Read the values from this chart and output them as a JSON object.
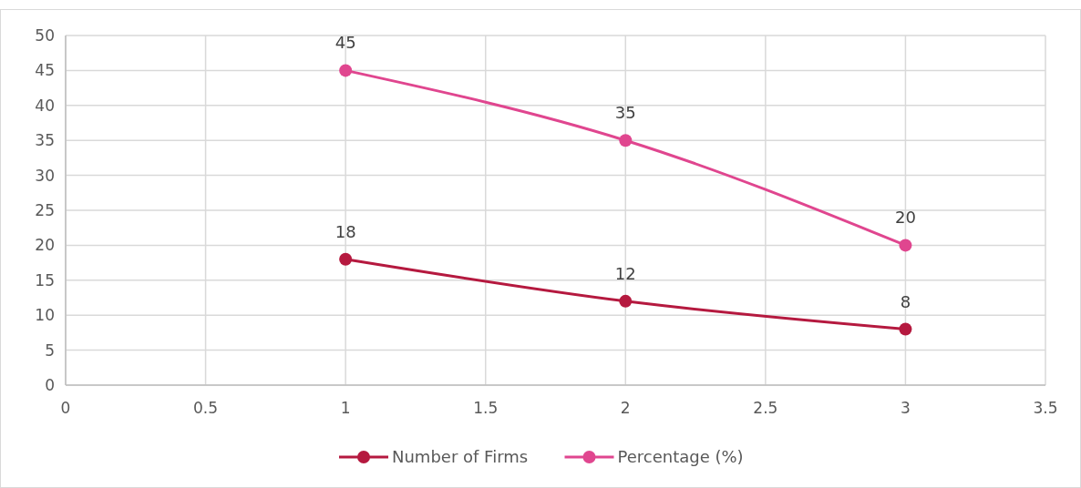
{
  "chart_data": {
    "type": "line",
    "x": [
      1,
      2,
      3
    ],
    "series": [
      {
        "name": "Number of Firms",
        "color": "#b5193f",
        "values": [
          18,
          12,
          8
        ]
      },
      {
        "name": "Percentage (%)",
        "color": "#e0468f",
        "values": [
          45,
          35,
          20
        ]
      }
    ],
    "xlim": [
      0,
      3.5
    ],
    "xticks": [
      0,
      0.5,
      {
        "value": 1,
        "label": "1"
      },
      1.5,
      2,
      2.5,
      3,
      3.5
    ],
    "ylim": [
      0,
      50
    ],
    "yticks": [
      0,
      5,
      10,
      15,
      20,
      25,
      30,
      35,
      40,
      45,
      50
    ],
    "grid": true,
    "legend": "bottom",
    "marker": "circle",
    "line_style": "solid",
    "data_labels": true
  }
}
